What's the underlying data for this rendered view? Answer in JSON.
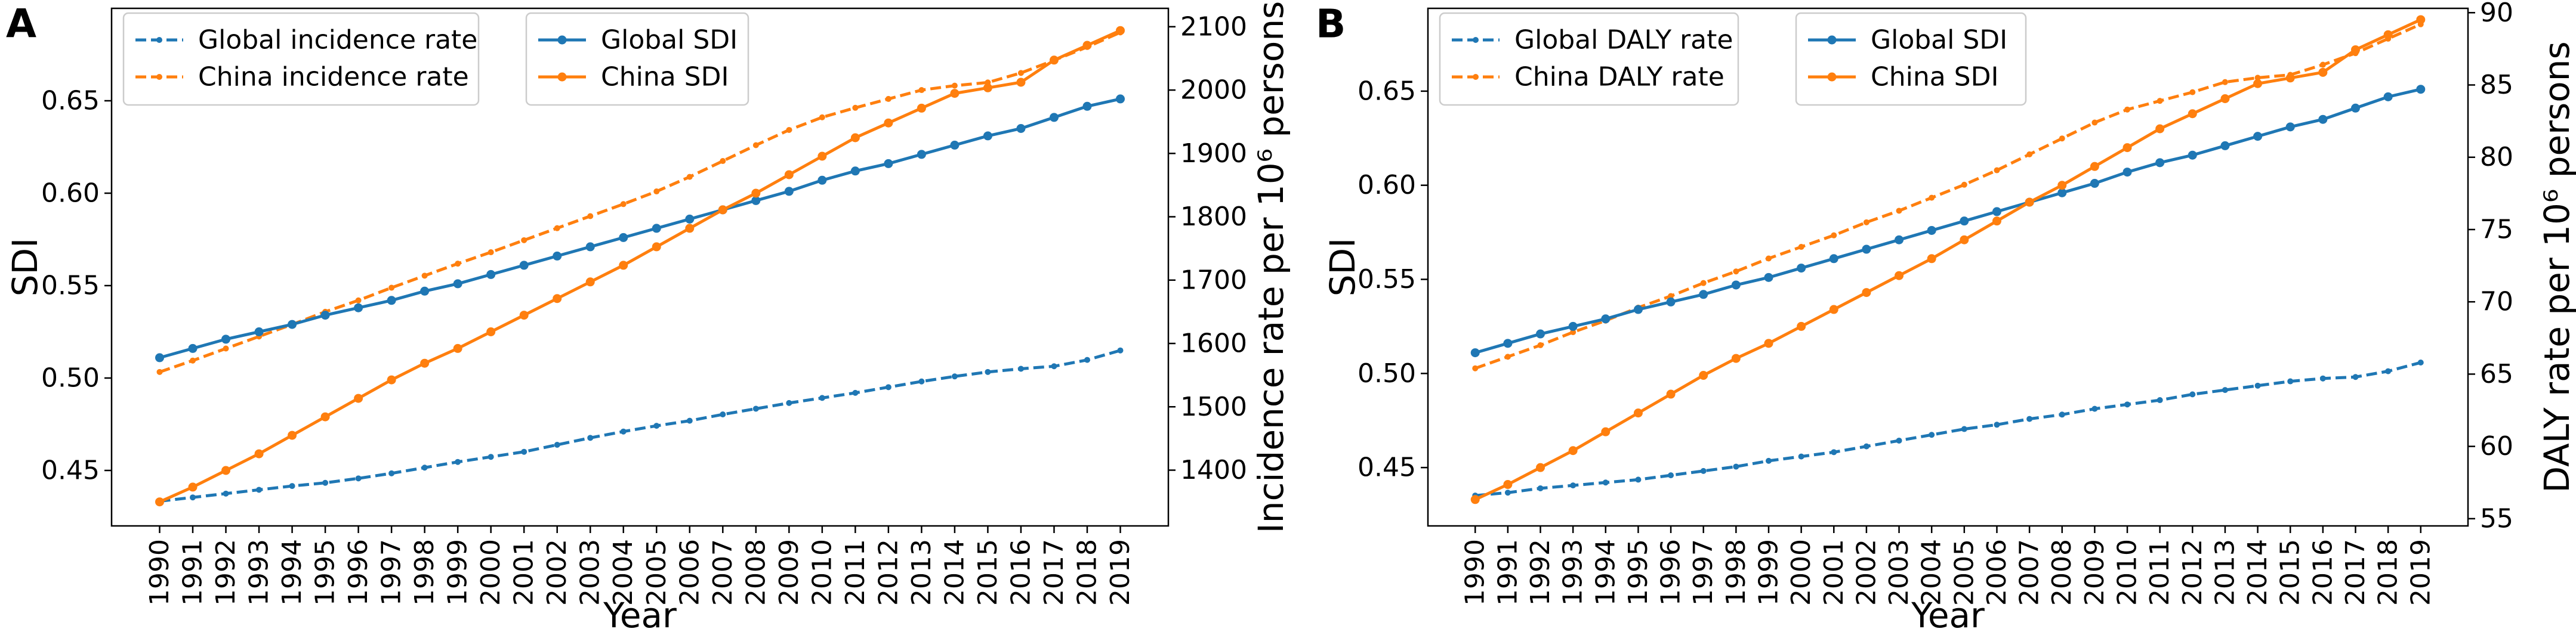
{
  "chart_data": [
    {
      "type": "line",
      "panel_label": "A",
      "xlabel": "Year",
      "ylabel": "SDI",
      "y2label": "Incidence rate per 10⁶ persons",
      "x": [
        1990,
        1991,
        1992,
        1993,
        1994,
        1995,
        1996,
        1997,
        1998,
        1999,
        2000,
        2001,
        2002,
        2003,
        2004,
        2005,
        2006,
        2007,
        2008,
        2009,
        2010,
        2011,
        2012,
        2013,
        2014,
        2015,
        2016,
        2017,
        2018,
        2019
      ],
      "xlim": [
        1988.55,
        2020.45
      ],
      "xticks": [
        1990,
        1991,
        1992,
        1993,
        1994,
        1995,
        1996,
        1997,
        1998,
        1999,
        2000,
        2001,
        2002,
        2003,
        2004,
        2005,
        2006,
        2007,
        2008,
        2009,
        2010,
        2011,
        2012,
        2013,
        2014,
        2015,
        2016,
        2017,
        2018,
        2019
      ],
      "ylim": [
        0.42,
        0.7
      ],
      "yticks": [
        0.45,
        {
          "value": 0.5,
          "label": "0.50"
        },
        0.55,
        {
          "value": 0.6,
          "label": "0.60"
        },
        0.65
      ],
      "y2lim": [
        1312,
        2129
      ],
      "y2ticks": [
        1400,
        1500,
        1600,
        1700,
        1800,
        1900,
        2000,
        2100
      ],
      "series": [
        {
          "name": "Global incidence rate",
          "color": "#1f77b4",
          "linestyle": "dashed",
          "axis": "y2",
          "values": [
            1351,
            1357,
            1363,
            1369,
            1375,
            1380,
            1387,
            1395,
            1404,
            1413,
            1421,
            1429,
            1440,
            1451,
            1461,
            1470,
            1478,
            1488,
            1497,
            1506,
            1514,
            1522,
            1531,
            1540,
            1548,
            1555,
            1560,
            1564,
            1574,
            1589
          ]
        },
        {
          "name": "China incidence rate",
          "color": "#ff7f0e",
          "linestyle": "dashed",
          "axis": "y2",
          "values": [
            1555,
            1573,
            1592,
            1611,
            1630,
            1650,
            1668,
            1688,
            1707,
            1726,
            1744,
            1763,
            1782,
            1801,
            1820,
            1840,
            1863,
            1888,
            1913,
            1937,
            1957,
            1972,
            1986,
            2000,
            2007,
            2012,
            2027,
            2047,
            2068,
            2091
          ]
        },
        {
          "name": "Global SDI",
          "color": "#1f77b4",
          "linestyle": "solid",
          "axis": "y",
          "values": [
            0.511,
            0.516,
            0.521,
            0.525,
            0.529,
            0.534,
            0.538,
            0.542,
            0.547,
            0.551,
            0.556,
            0.561,
            0.566,
            0.571,
            0.576,
            0.581,
            0.586,
            0.591,
            0.596,
            0.601,
            0.607,
            0.612,
            0.616,
            0.621,
            0.626,
            0.631,
            0.635,
            0.641,
            0.647,
            0.651
          ]
        },
        {
          "name": "China SDI",
          "color": "#ff7f0e",
          "linestyle": "solid",
          "axis": "y",
          "values": [
            0.433,
            0.441,
            0.45,
            0.459,
            0.469,
            0.479,
            0.489,
            0.499,
            0.508,
            0.516,
            0.525,
            0.534,
            0.543,
            0.552,
            0.561,
            0.571,
            0.581,
            0.591,
            0.6,
            0.61,
            0.62,
            0.63,
            0.638,
            0.646,
            0.654,
            0.657,
            0.66,
            0.672,
            0.68,
            0.688
          ]
        }
      ]
    },
    {
      "type": "line",
      "panel_label": "B",
      "xlabel": "Year",
      "ylabel": "SDI",
      "y2label": "DALY rate per 10⁶ persons",
      "x": [
        1990,
        1991,
        1992,
        1993,
        1994,
        1995,
        1996,
        1997,
        1998,
        1999,
        2000,
        2001,
        2002,
        2003,
        2004,
        2005,
        2006,
        2007,
        2008,
        2009,
        2010,
        2011,
        2012,
        2013,
        2014,
        2015,
        2016,
        2017,
        2018,
        2019
      ],
      "xlim": [
        1988.55,
        2020.45
      ],
      "xticks": [
        1990,
        1991,
        1992,
        1993,
        1994,
        1995,
        1996,
        1997,
        1998,
        1999,
        2000,
        2001,
        2002,
        2003,
        2004,
        2005,
        2006,
        2007,
        2008,
        2009,
        2010,
        2011,
        2012,
        2013,
        2014,
        2015,
        2016,
        2017,
        2018,
        2019
      ],
      "ylim": [
        0.419,
        0.694
      ],
      "yticks": [
        0.45,
        {
          "value": 0.5,
          "label": "0.50"
        },
        0.55,
        {
          "value": 0.6,
          "label": "0.60"
        },
        0.65
      ],
      "y2lim": [
        54.5,
        90.3
      ],
      "y2ticks": [
        55,
        60,
        65,
        70,
        75,
        80,
        85,
        90
      ],
      "series": [
        {
          "name": "Global DALY rate",
          "color": "#1f77b4",
          "linestyle": "dashed",
          "axis": "y2",
          "values": [
            56.6,
            56.8,
            57.1,
            57.3,
            57.5,
            57.7,
            58.0,
            58.3,
            58.6,
            59.0,
            59.3,
            59.6,
            60.0,
            60.4,
            60.8,
            61.2,
            61.5,
            61.9,
            62.2,
            62.6,
            62.9,
            63.2,
            63.6,
            63.9,
            64.2,
            64.5,
            64.7,
            64.8,
            65.2,
            65.8
          ]
        },
        {
          "name": "China DALY rate",
          "color": "#ff7f0e",
          "linestyle": "dashed",
          "axis": "y2",
          "values": [
            65.4,
            66.2,
            67.0,
            67.9,
            68.7,
            69.6,
            70.4,
            71.3,
            72.1,
            73.0,
            73.8,
            74.6,
            75.5,
            76.3,
            77.2,
            78.1,
            79.1,
            80.2,
            81.3,
            82.4,
            83.3,
            83.9,
            84.5,
            85.2,
            85.5,
            85.7,
            86.4,
            87.2,
            88.2,
            89.2
          ]
        },
        {
          "name": "Global SDI",
          "color": "#1f77b4",
          "linestyle": "solid",
          "axis": "y",
          "values": [
            0.511,
            0.516,
            0.521,
            0.525,
            0.529,
            0.534,
            0.538,
            0.542,
            0.547,
            0.551,
            0.556,
            0.561,
            0.566,
            0.571,
            0.576,
            0.581,
            0.586,
            0.591,
            0.596,
            0.601,
            0.607,
            0.612,
            0.616,
            0.621,
            0.626,
            0.631,
            0.635,
            0.641,
            0.647,
            0.651
          ]
        },
        {
          "name": "China SDI",
          "color": "#ff7f0e",
          "linestyle": "solid",
          "axis": "y",
          "values": [
            0.433,
            0.441,
            0.45,
            0.459,
            0.469,
            0.479,
            0.489,
            0.499,
            0.508,
            0.516,
            0.525,
            0.534,
            0.543,
            0.552,
            0.561,
            0.571,
            0.581,
            0.591,
            0.6,
            0.61,
            0.62,
            0.63,
            0.638,
            0.646,
            0.654,
            0.657,
            0.66,
            0.672,
            0.68,
            0.688
          ]
        }
      ]
    }
  ]
}
